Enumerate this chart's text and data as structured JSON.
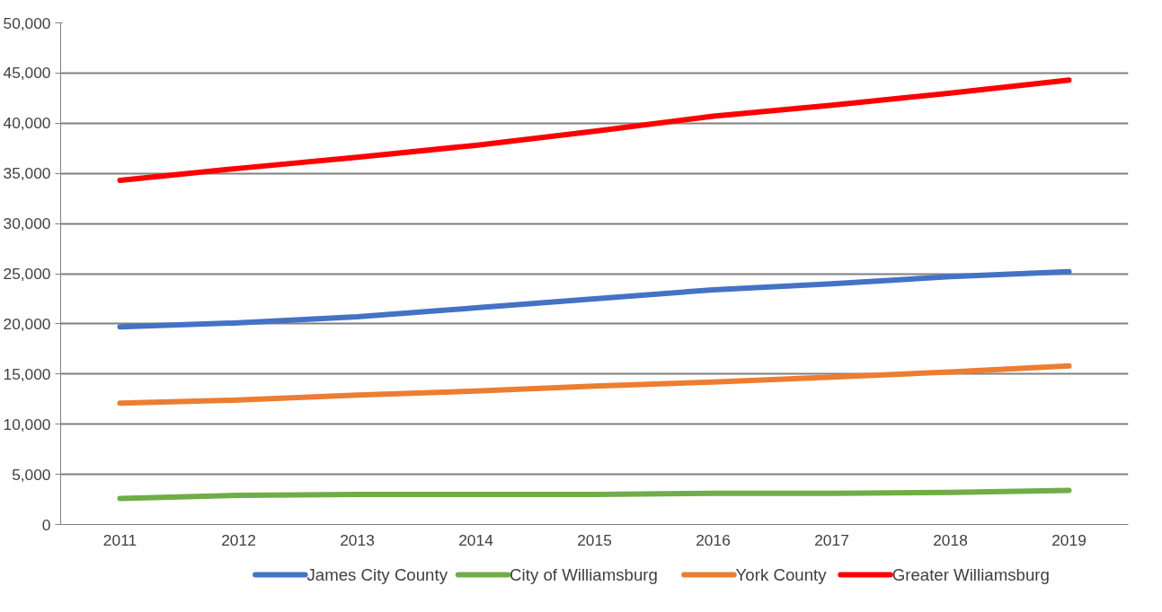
{
  "chart_data": {
    "type": "line",
    "categories": [
      "2011",
      "2012",
      "2013",
      "2014",
      "2015",
      "2016",
      "2017",
      "2018",
      "2019"
    ],
    "series": [
      {
        "name": "James City County",
        "color": "#4472c4",
        "values": [
          19700,
          20100,
          20700,
          21600,
          22500,
          23400,
          24000,
          24700,
          25200
        ]
      },
      {
        "name": "City of Williamsburg",
        "color": "#70ad47",
        "values": [
          2600,
          2900,
          3000,
          3000,
          3000,
          3100,
          3100,
          3200,
          3400
        ]
      },
      {
        "name": "York County",
        "color": "#ed7d31",
        "values": [
          12100,
          12400,
          12900,
          13300,
          13800,
          14200,
          14700,
          15200,
          15800
        ]
      },
      {
        "name": "Greater Williamsburg",
        "color": "#ff0000",
        "values": [
          34300,
          35500,
          36600,
          37800,
          39200,
          40700,
          41800,
          43000,
          44300
        ]
      }
    ],
    "ylim": [
      0,
      50000
    ],
    "yticks": [
      {
        "value": 0,
        "label": "0"
      },
      {
        "value": 5000,
        "label": "5,000"
      },
      {
        "value": 10000,
        "label": "10,000"
      },
      {
        "value": 15000,
        "label": "15,000"
      },
      {
        "value": 20000,
        "label": "20,000"
      },
      {
        "value": 25000,
        "label": "25,000"
      },
      {
        "value": 30000,
        "label": "30,000"
      },
      {
        "value": 35000,
        "label": "35,000"
      },
      {
        "value": 40000,
        "label": "40,000"
      },
      {
        "value": 45000,
        "label": "45,000"
      },
      {
        "value": 50000,
        "label": "50,000"
      }
    ],
    "grid": "y",
    "legend": "bottom",
    "line_style": "solid",
    "marker": "none"
  }
}
